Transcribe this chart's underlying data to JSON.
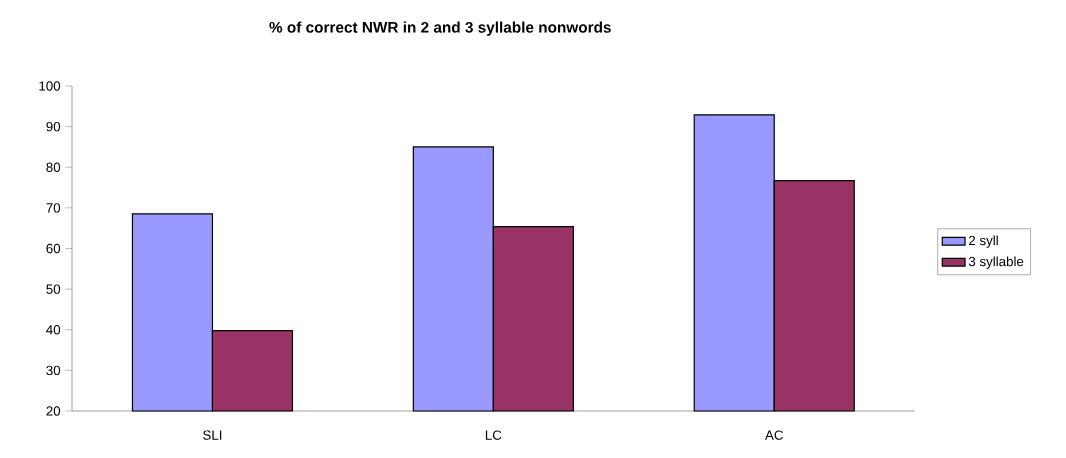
{
  "chart_data": {
    "type": "bar",
    "title": "% of correct NWR in 2 and 3 syllable nonwords",
    "categories": [
      "SLI",
      "LC",
      "AC"
    ],
    "series": [
      {
        "name": "2 syll",
        "color": "#9999ff",
        "values": [
          68.5,
          85.0,
          92.9
        ]
      },
      {
        "name": "3 syllable",
        "color": "#993366",
        "values": [
          39.8,
          65.4,
          76.7
        ]
      }
    ],
    "ylim": [
      20,
      100
    ],
    "yticks": [
      20,
      30,
      40,
      50,
      60,
      70,
      80,
      90,
      100
    ],
    "legend": "right"
  }
}
